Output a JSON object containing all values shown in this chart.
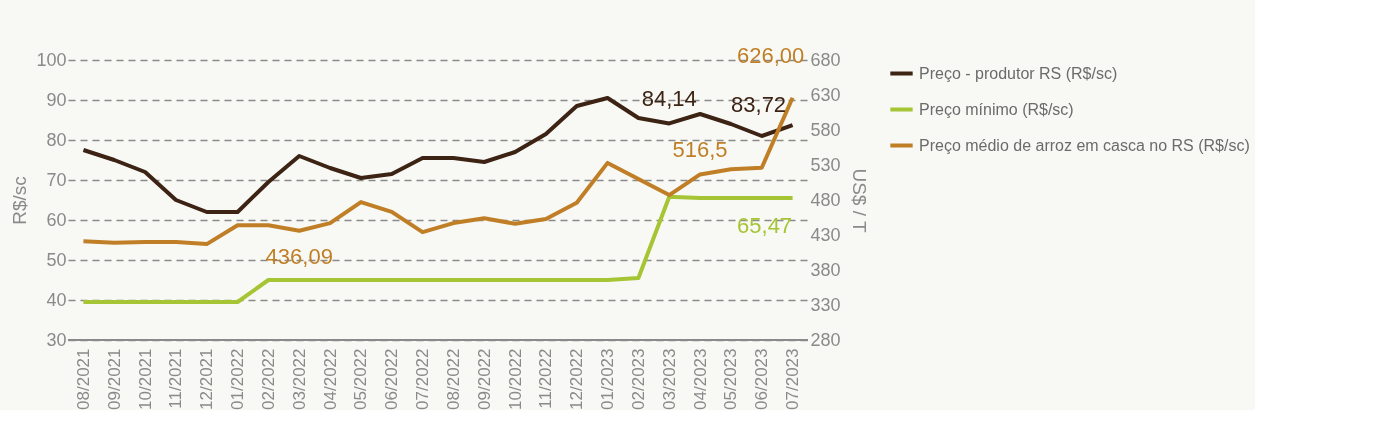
{
  "chart_data": {
    "type": "line",
    "ylabel": "R$/sc",
    "y2label": "US$ / T",
    "categories": [
      "08/2021",
      "09/2021",
      "10/2021",
      "11/2021",
      "12/2021",
      "01/2022",
      "02/2022",
      "03/2022",
      "04/2022",
      "05/2022",
      "06/2022",
      "07/2022",
      "08/2022",
      "09/2022",
      "10/2022",
      "11/2022",
      "12/2022",
      "01/2023",
      "02/2023",
      "03/2023",
      "04/2023",
      "05/2023",
      "06/2023",
      "07/2023"
    ],
    "series": [
      {
        "name": "Preço - produtor RS (R$/sc)",
        "color": "#3d2314",
        "values": [
          77.5,
          75,
          72,
          65,
          62,
          62,
          69.5,
          76,
          73,
          70.5,
          71.5,
          75.5,
          75.5,
          74.5,
          77,
          81.5,
          88.5,
          90.5,
          85.5,
          84.14,
          86.5,
          84,
          81,
          83.72
        ],
        "value_labels": [
          null,
          null,
          null,
          null,
          null,
          null,
          null,
          null,
          null,
          null,
          null,
          null,
          null,
          null,
          null,
          null,
          null,
          null,
          null,
          "84,14",
          null,
          null,
          null,
          "83,72"
        ]
      },
      {
        "name": "Preço mínimo (R$/sc)",
        "color": "#a5c535",
        "values": [
          39.5,
          39.5,
          39.5,
          39.5,
          39.5,
          39.5,
          45,
          45,
          45,
          45,
          45,
          45,
          45,
          45,
          45,
          45,
          45,
          45,
          45.5,
          65.8,
          65.47,
          65.47,
          65.47,
          65.47
        ],
        "value_labels": [
          null,
          null,
          null,
          null,
          null,
          null,
          null,
          null,
          null,
          null,
          null,
          null,
          null,
          null,
          null,
          null,
          null,
          null,
          null,
          null,
          null,
          null,
          null,
          "65,47"
        ]
      },
      {
        "name": "Preço médio de arroz em casca no RS (R$/sc)",
        "color": "#c07f27",
        "axis": "y2",
        "values": [
          421,
          419,
          420,
          420,
          417,
          444,
          444,
          436.09,
          447,
          477,
          463,
          434,
          447,
          454,
          446,
          453,
          476,
          533,
          510,
          487,
          516.5,
          524,
          526,
          626
        ],
        "value_labels": [
          null,
          null,
          null,
          null,
          null,
          null,
          null,
          "436,09",
          null,
          null,
          null,
          null,
          null,
          null,
          null,
          null,
          null,
          null,
          null,
          null,
          "516,5",
          null,
          null,
          "626,00"
        ]
      }
    ],
    "ylim": [
      30,
      100
    ],
    "yticks": [
      30,
      40,
      50,
      60,
      70,
      80,
      90,
      100
    ],
    "y2lim": [
      280,
      680
    ],
    "y2ticks": [
      280,
      330,
      380,
      430,
      480,
      530,
      580,
      630,
      680
    ],
    "grid": "y",
    "line_style": "solid",
    "marker": "none",
    "legend": "top right"
  }
}
